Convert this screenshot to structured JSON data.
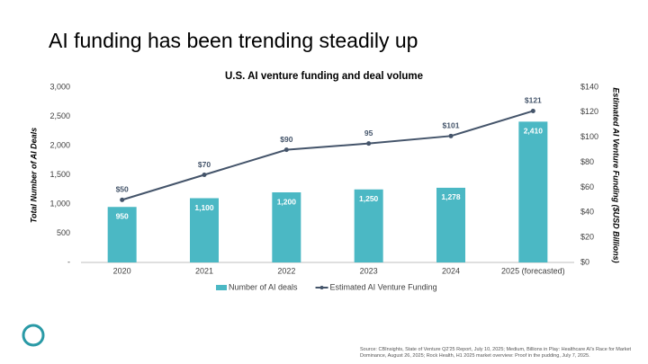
{
  "slide": {
    "title": "AI funding has been trending steadily up",
    "source": "Source: CBInsights, State of Venture Q2'25 Report, July 10, 2025; Medium, Billions in Play: Healthcare AI's Race for Market Dominance, August 26, 2025; Rock Health, H1 2025 market overview: Proof in the pudding, July 7, 2025."
  },
  "chart_data": {
    "type": "bar",
    "title": "U.S. AI venture funding and deal volume",
    "y_label": "Total Number of AI Deals",
    "y2_label": "Estimated  AI Venture Funding ($USD Billions)",
    "categories": [
      "2020",
      "2021",
      "2022",
      "2023",
      "2024",
      "2025 (forecasted)"
    ],
    "series": [
      {
        "name": "Number of AI deals",
        "type": "bar",
        "color": "#4bb8c4",
        "values": [
          950,
          1100,
          1200,
          1250,
          1278,
          2410
        ],
        "value_labels": [
          "950",
          "1,100",
          "1,200",
          "1,250",
          "1,278",
          "2,410"
        ]
      },
      {
        "name": "Estimated AI Venture Funding",
        "type": "line",
        "axis": "y2",
        "color": "#44546a",
        "values": [
          50,
          70,
          90,
          95,
          101,
          121
        ],
        "value_labels": [
          "$50",
          "$70",
          "$90",
          "95",
          "$101",
          "$121"
        ]
      }
    ],
    "ylim": [
      0,
      3000
    ],
    "yticks": [
      {
        "value": 0,
        "label": "-"
      },
      500,
      {
        "value": 1000,
        "label": "1,000"
      },
      {
        "value": 1500,
        "label": "1,500"
      },
      {
        "value": 2000,
        "label": "2,000"
      },
      {
        "value": 2500,
        "label": "2,500"
      },
      {
        "value": 3000,
        "label": "3,000"
      }
    ],
    "y2lim": [
      0,
      140
    ],
    "y2ticks": [
      {
        "value": 0,
        "label": "$0"
      },
      {
        "value": 20,
        "label": "$20"
      },
      {
        "value": 40,
        "label": "$40"
      },
      {
        "value": 60,
        "label": "$60"
      },
      {
        "value": 80,
        "label": "$80"
      },
      {
        "value": 100,
        "label": "$100"
      },
      {
        "value": 120,
        "label": "$120"
      },
      {
        "value": 140,
        "label": "$140"
      }
    ],
    "legend": "bottom"
  }
}
